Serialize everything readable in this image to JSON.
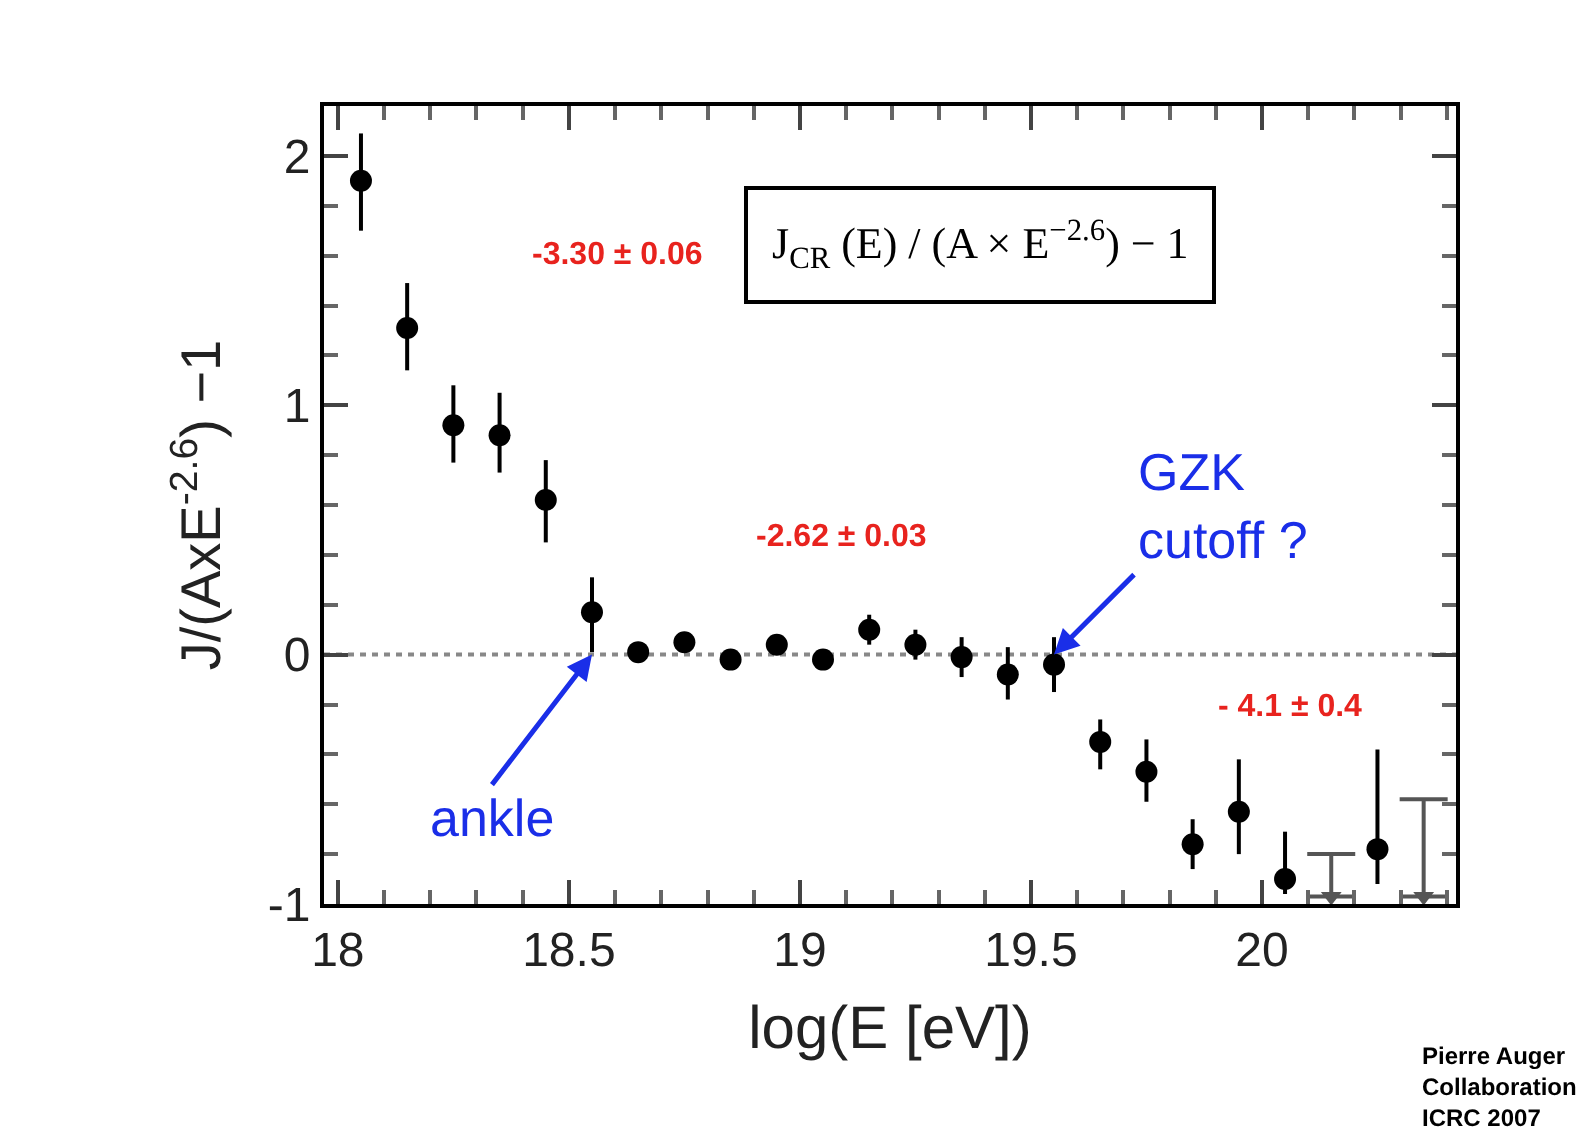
{
  "chart_data": {
    "type": "scatter",
    "xlabel": "log(E [eV])",
    "ylabel": "J/(AxE$^{-2.6}$) −1",
    "xlim": [
      17.97,
      20.42
    ],
    "xticks": [
      18,
      18.5,
      19,
      19.5,
      20
    ],
    "ylim": [
      -1,
      2.2
    ],
    "yticks": [
      -1,
      0,
      1,
      2
    ],
    "grid": false,
    "series": [
      {
        "color": "#000000",
        "marker": "circle",
        "x": [
          18.05,
          18.15,
          18.25,
          18.35,
          18.45,
          18.55,
          18.65,
          18.75,
          18.85,
          18.95,
          19.05,
          19.15,
          19.25,
          19.35,
          19.45,
          19.55,
          19.65,
          19.75,
          19.85,
          19.95,
          20.05,
          20.25
        ],
        "values": [
          1.9,
          1.31,
          0.92,
          0.88,
          0.62,
          0.17,
          0.01,
          0.05,
          -0.02,
          0.04,
          -0.02,
          0.1,
          0.04,
          -0.01,
          -0.08,
          -0.04,
          -0.35,
          -0.47,
          -0.76,
          -0.63,
          -0.9,
          -0.78
        ],
        "errors": [
          [
            1.7,
            2.09
          ],
          [
            1.14,
            1.49
          ],
          [
            0.77,
            1.08
          ],
          [
            0.73,
            1.05
          ],
          [
            0.45,
            0.78
          ],
          [
            0.01,
            0.31
          ],
          0.03,
          0.03,
          0.03,
          0.03,
          0.03,
          0.06,
          0.06,
          0.08,
          [
            -0.18,
            0.03
          ],
          [
            -0.15,
            0.07
          ],
          [
            -0.46,
            -0.26
          ],
          [
            -0.59,
            -0.34
          ],
          [
            -0.86,
            -0.66
          ],
          [
            -0.8,
            -0.42
          ],
          [
            -0.96,
            -0.71
          ],
          [
            -0.92,
            -0.38
          ]
        ]
      },
      {
        "color": "#555555",
        "marker": "triangle",
        "x": [
          20.15,
          20.35
        ],
        "values": [
          -0.97,
          -0.97
        ],
        "errors": [
          [
            -0.97,
            -0.8
          ],
          [
            -0.97,
            -0.58
          ]
        ]
      }
    ],
    "ref_lines": [
      {
        "axis": "y",
        "value": 0,
        "color": "#888888",
        "line_style": "dotted"
      }
    ],
    "annotations": [
      {
        "text": "ankle",
        "x": 18.55,
        "y": 0
      },
      {
        "text": "GZK\ncutoff ?",
        "x": 19.55,
        "y": 0
      },
      "-3.30 ± 0.06",
      "-2.62 ± 0.03",
      "- 4.1 ± 0.4",
      "J$_{CR}$ (E) / (A × E$^{−2.6}$) − 1",
      "Pierre Auger\nCollaboration\nICRC 2007"
    ]
  }
}
